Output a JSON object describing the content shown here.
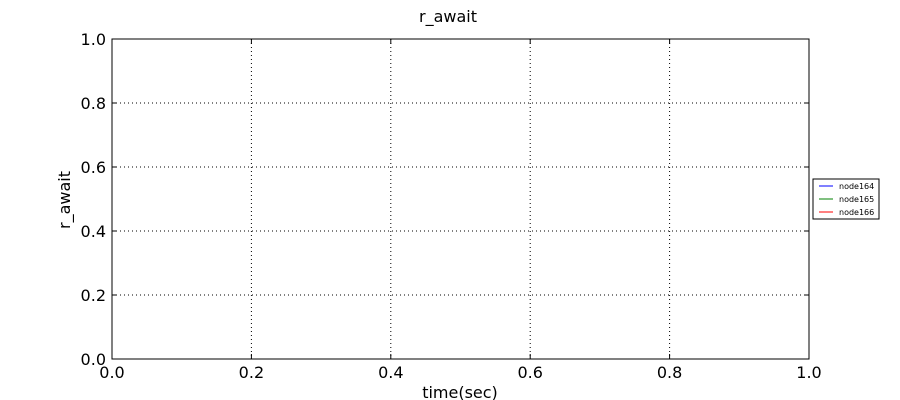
{
  "chart_data": {
    "type": "line",
    "title": "r_await",
    "xlabel": "time(sec)",
    "ylabel": "r_await",
    "xlim": [
      0.0,
      1.0
    ],
    "ylim": [
      0.0,
      1.0
    ],
    "x_ticks": [
      "0.0",
      "0.2",
      "0.4",
      "0.6",
      "0.8",
      "1.0"
    ],
    "y_ticks": [
      "0.0",
      "0.2",
      "0.4",
      "0.6",
      "0.8",
      "1.0"
    ],
    "grid": true,
    "legend_position": "right",
    "series": [
      {
        "name": "node164",
        "color": "#0000ff",
        "x": [],
        "y": []
      },
      {
        "name": "node165",
        "color": "#008000",
        "x": [],
        "y": []
      },
      {
        "name": "node166",
        "color": "#ff0000",
        "x": [],
        "y": []
      }
    ]
  }
}
